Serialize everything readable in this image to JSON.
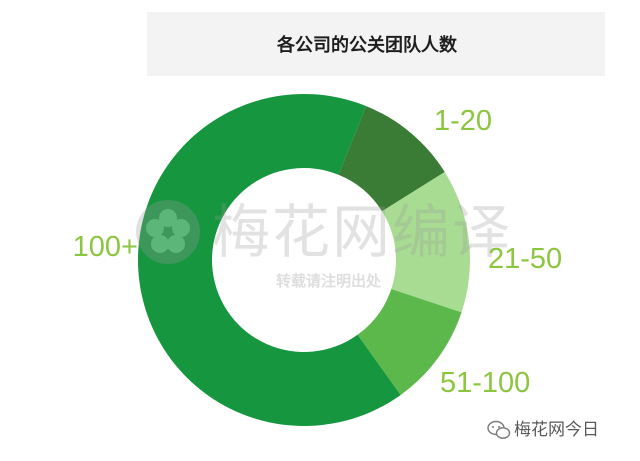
{
  "chart_data": {
    "type": "pie",
    "donut": true,
    "title": "各公司的公关团队人数",
    "categories": [
      "1-20",
      "21-50",
      "51-100",
      "100+"
    ],
    "values": [
      10,
      14,
      10,
      66
    ],
    "colors": [
      "#3a7c36",
      "#a9dc93",
      "#5cb84a",
      "#16963f"
    ],
    "label_color": "#8cc63f"
  },
  "watermark": {
    "main": "梅花网编译",
    "sub": "转载请注明出处"
  },
  "footer": {
    "text": "梅花网今日",
    "icon": "wechat-icon"
  }
}
